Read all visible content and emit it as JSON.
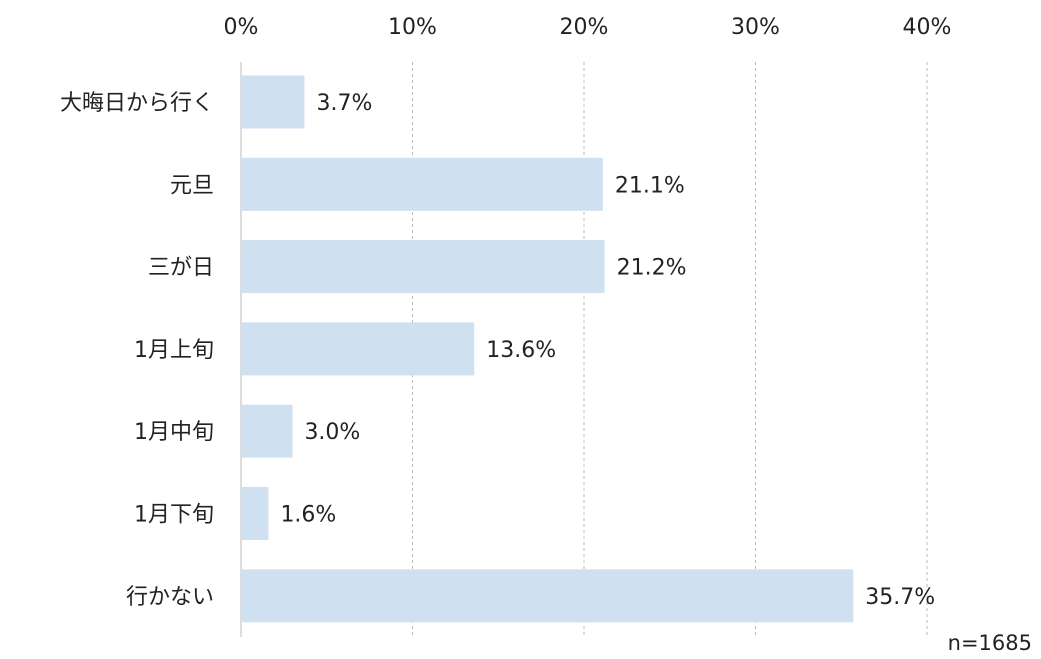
{
  "chart_data": {
    "type": "bar",
    "orientation": "horizontal",
    "categories": [
      "大晦日から行く",
      "元旦",
      "三が日",
      "1月上旬",
      "1月中旬",
      "1月下旬",
      "行かない"
    ],
    "values": [
      3.7,
      21.1,
      21.2,
      13.6,
      3.0,
      1.6,
      35.7
    ],
    "value_labels": [
      "3.7%",
      "21.1%",
      "21.2%",
      "13.6%",
      "3.0%",
      "1.6%",
      "35.7%"
    ],
    "xlim": [
      0,
      40
    ],
    "xticks": [
      0,
      10,
      20,
      30,
      40
    ],
    "xtick_labels": [
      "0%",
      "10%",
      "20%",
      "30%",
      "40%"
    ],
    "x_axis_position": "top",
    "grid": "vertical dashed",
    "legend": "none",
    "note": "n=1685",
    "bar_color": "#cfe0f1",
    "grid_color": "#bbbbbb",
    "text_color": "#222222"
  }
}
